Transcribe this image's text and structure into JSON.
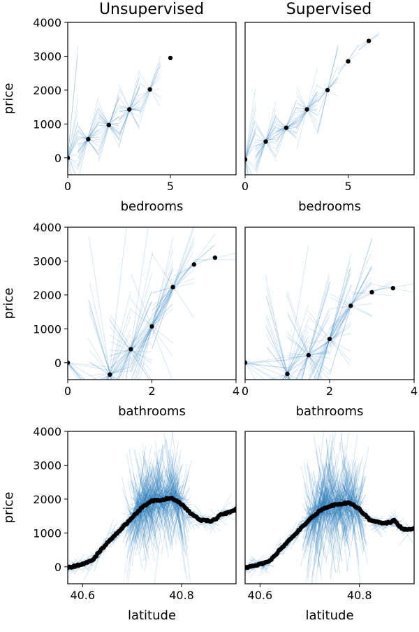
{
  "colors": {
    "lines": "#1f77b4",
    "points": "#000000",
    "frame": "#000000",
    "background": "#ffffff"
  },
  "column_titles": [
    "Unsupervised",
    "Supervised"
  ],
  "chart_data": [
    {
      "type": "scatter",
      "row": 0,
      "col": 0,
      "title": "Unsupervised",
      "xlabel": "bedrooms",
      "ylabel": "price",
      "xlim": [
        0,
        8.2
      ],
      "ylim": [
        -500,
        4000
      ],
      "xticks": [
        0,
        5
      ],
      "yticks": [
        0,
        1000,
        2000,
        3000,
        4000
      ],
      "points": [
        [
          0,
          0
        ],
        [
          1,
          550
        ],
        [
          2,
          970
        ],
        [
          3,
          1430
        ],
        [
          4,
          2020
        ],
        [
          5,
          2950
        ]
      ],
      "tangent_segments": {
        "center_x": [
          0,
          1,
          2,
          3,
          4
        ],
        "half_width": 0.5,
        "slope_spread": [
          4000,
          1600,
          1500,
          1700,
          2400
        ],
        "density": [
          20,
          24,
          24,
          22,
          10
        ]
      }
    },
    {
      "type": "scatter",
      "row": 0,
      "col": 1,
      "title": "Supervised",
      "xlabel": "bedrooms",
      "ylabel": "",
      "xlim": [
        0,
        8.2
      ],
      "ylim": [
        -500,
        4000
      ],
      "xticks": [
        0,
        5
      ],
      "yticks": [],
      "points": [
        [
          0,
          -50
        ],
        [
          1,
          480
        ],
        [
          2,
          890
        ],
        [
          3,
          1430
        ],
        [
          4,
          2000
        ],
        [
          5,
          2850
        ],
        [
          6,
          3450
        ]
      ],
      "tangent_segments": {
        "center_x": [
          0,
          1,
          2,
          3,
          4,
          5,
          6
        ],
        "half_width": 0.5,
        "slope_spread": [
          4000,
          1600,
          1500,
          1700,
          2200,
          500,
          300
        ],
        "density": [
          20,
          24,
          24,
          22,
          10,
          3,
          3
        ]
      }
    },
    {
      "type": "scatter",
      "row": 1,
      "col": 0,
      "title": "",
      "xlabel": "bathrooms",
      "ylabel": "price",
      "xlim": [
        0,
        4
      ],
      "ylim": [
        -500,
        4000
      ],
      "xticks": [
        0,
        2,
        4
      ],
      "yticks": [
        0,
        1000,
        2000,
        3000,
        4000
      ],
      "points": [
        [
          0,
          0
        ],
        [
          1,
          -350
        ],
        [
          1.5,
          400
        ],
        [
          2,
          1070
        ],
        [
          2.5,
          2230
        ],
        [
          3,
          2900
        ],
        [
          3.5,
          3100
        ]
      ],
      "tangent_segments": {
        "center_x": [
          0,
          1,
          1.5,
          2,
          2.5,
          3,
          3.5
        ],
        "half_width": [
          1,
          0.5,
          0.5,
          0.5,
          0.5,
          0.5,
          0.5
        ],
        "slope_spread": [
          1500,
          7000,
          6000,
          3500,
          3000,
          1200,
          800
        ],
        "density": [
          10,
          24,
          24,
          22,
          14,
          4,
          2
        ]
      }
    },
    {
      "type": "scatter",
      "row": 1,
      "col": 1,
      "title": "",
      "xlabel": "bathrooms",
      "ylabel": "",
      "xlim": [
        0,
        4
      ],
      "ylim": [
        -500,
        4000
      ],
      "xticks": [
        0,
        2,
        4
      ],
      "yticks": [],
      "points": [
        [
          0,
          0
        ],
        [
          1,
          -330
        ],
        [
          1.5,
          220
        ],
        [
          2,
          700
        ],
        [
          2.5,
          1680
        ],
        [
          3,
          2080
        ],
        [
          3.5,
          2200
        ]
      ],
      "tangent_segments": {
        "center_x": [
          0,
          1,
          1.5,
          2,
          2.5,
          3,
          3.5
        ],
        "half_width": [
          1,
          0.5,
          0.5,
          0.5,
          0.5,
          0.5,
          0.5
        ],
        "slope_spread": [
          1500,
          6500,
          5500,
          3000,
          2500,
          900,
          500
        ],
        "density": [
          10,
          24,
          24,
          22,
          14,
          4,
          2
        ]
      }
    },
    {
      "type": "scatter",
      "row": 2,
      "col": 0,
      "title": "",
      "xlabel": "latitude",
      "ylabel": "price",
      "xlim": [
        40.57,
        40.91
      ],
      "ylim": [
        -500,
        4000
      ],
      "xticks": [
        40.6,
        40.8
      ],
      "yticks": [
        0,
        1000,
        2000,
        3000,
        4000
      ],
      "curve": [
        [
          40.57,
          -30
        ],
        [
          40.6,
          80
        ],
        [
          40.62,
          200
        ],
        [
          40.64,
          550
        ],
        [
          40.66,
          850
        ],
        [
          40.68,
          1150
        ],
        [
          40.7,
          1450
        ],
        [
          40.72,
          1750
        ],
        [
          40.74,
          1950
        ],
        [
          40.76,
          1980
        ],
        [
          40.78,
          2040
        ],
        [
          40.8,
          1850
        ],
        [
          40.82,
          1550
        ],
        [
          40.84,
          1380
        ],
        [
          40.86,
          1350
        ],
        [
          40.87,
          1420
        ],
        [
          40.88,
          1550
        ],
        [
          40.9,
          1620
        ],
        [
          40.91,
          1700
        ]
      ],
      "tangent_segments": {
        "half_width": 0.015,
        "count": 700,
        "dense_range": [
          40.7,
          40.8
        ]
      }
    },
    {
      "type": "scatter",
      "row": 2,
      "col": 1,
      "title": "",
      "xlabel": "latitude",
      "ylabel": "",
      "xlim": [
        40.57,
        40.91
      ],
      "ylim": [
        -500,
        4000
      ],
      "xticks": [
        40.6,
        40.8
      ],
      "yticks": [],
      "curve": [
        [
          40.57,
          -30
        ],
        [
          40.6,
          70
        ],
        [
          40.62,
          180
        ],
        [
          40.64,
          500
        ],
        [
          40.66,
          800
        ],
        [
          40.68,
          1100
        ],
        [
          40.7,
          1400
        ],
        [
          40.72,
          1650
        ],
        [
          40.74,
          1800
        ],
        [
          40.76,
          1850
        ],
        [
          40.78,
          1900
        ],
        [
          40.8,
          1700
        ],
        [
          40.82,
          1400
        ],
        [
          40.84,
          1300
        ],
        [
          40.86,
          1300
        ],
        [
          40.87,
          1380
        ],
        [
          40.88,
          1200
        ],
        [
          40.89,
          1100
        ],
        [
          40.9,
          1100
        ],
        [
          40.91,
          1150
        ]
      ],
      "tangent_segments": {
        "half_width": 0.015,
        "count": 700,
        "dense_range": [
          40.7,
          40.8
        ]
      }
    }
  ]
}
